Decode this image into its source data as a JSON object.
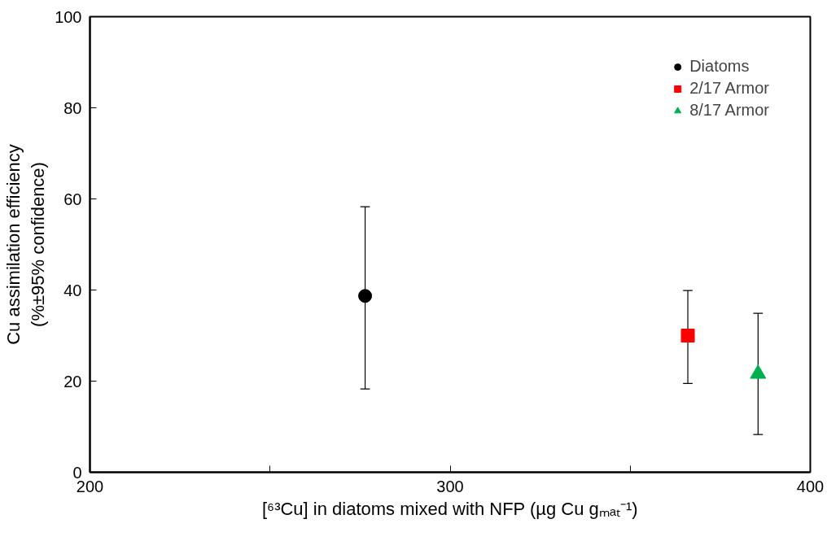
{
  "chart_data": {
    "type": "scatter",
    "xlabel": "[⁶³Cu] in diatoms mixed with NFP (µg Cu gₘₐₜ⁻¹)",
    "ylabel": "Cu assimilation efficiency\n(%±95% confidence)",
    "xlim": [
      200,
      400
    ],
    "xticks": [
      200,
      {
        "value": 250,
        "label": null
      },
      300,
      {
        "value": 350,
        "label": null
      },
      400
    ],
    "ylim": [
      0,
      100
    ],
    "yticks": [
      0,
      20,
      40,
      60,
      80,
      100
    ],
    "grid": false,
    "legend": "top right",
    "series": [
      {
        "name": "Diatoms",
        "color": "#000000",
        "marker": "circle",
        "x": [
          276.4
        ],
        "values": [
          38.7
        ],
        "errors": [
          [
            18.3,
            58.3
          ]
        ]
      },
      {
        "name": "2/17 Armor",
        "color": "#ff0000",
        "marker": "square",
        "x": [
          366
        ],
        "values": [
          30.0
        ],
        "errors": [
          [
            19.5,
            39.9
          ]
        ]
      },
      {
        "name": "8/17 Armor",
        "color": "#00b050",
        "marker": "triangle",
        "x": [
          385.5
        ],
        "values": [
          21.6
        ],
        "errors": [
          [
            8.3,
            34.9
          ]
        ]
      }
    ]
  }
}
